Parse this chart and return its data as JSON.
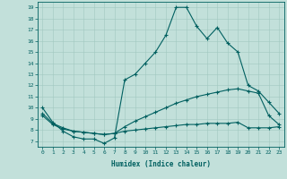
{
  "xlabel": "Humidex (Indice chaleur)",
  "background_color": "#c2e0da",
  "line_color": "#006060",
  "grid_color": "#a0c8c0",
  "xlim": [
    -0.5,
    23.5
  ],
  "ylim": [
    6.5,
    19.5
  ],
  "xticks": [
    0,
    1,
    2,
    3,
    4,
    5,
    6,
    7,
    8,
    9,
    10,
    11,
    12,
    13,
    14,
    15,
    16,
    17,
    18,
    19,
    20,
    21,
    22,
    23
  ],
  "yticks": [
    7,
    8,
    9,
    10,
    11,
    12,
    13,
    14,
    15,
    16,
    17,
    18,
    19
  ],
  "line1_x": [
    0,
    1,
    2,
    3,
    4,
    5,
    6,
    7,
    8,
    9,
    10,
    11,
    12,
    13,
    14,
    15,
    16,
    17,
    18,
    19,
    20,
    21,
    22,
    23
  ],
  "line1_y": [
    10.0,
    8.7,
    7.9,
    7.4,
    7.2,
    7.2,
    6.8,
    7.3,
    12.5,
    13.0,
    14.0,
    15.0,
    16.5,
    19.0,
    19.0,
    17.3,
    16.2,
    17.2,
    15.8,
    15.0,
    12.0,
    11.5,
    10.5,
    9.5
  ],
  "line2_x": [
    0,
    1,
    2,
    3,
    4,
    5,
    6,
    7,
    8,
    9,
    10,
    11,
    12,
    13,
    14,
    15,
    16,
    17,
    18,
    19,
    20,
    21,
    22,
    23
  ],
  "line2_y": [
    9.5,
    8.6,
    8.2,
    7.9,
    7.8,
    7.7,
    7.6,
    7.7,
    8.3,
    8.8,
    9.2,
    9.6,
    10.0,
    10.4,
    10.7,
    11.0,
    11.2,
    11.4,
    11.6,
    11.7,
    11.5,
    11.3,
    9.3,
    8.5
  ],
  "line3_x": [
    0,
    1,
    2,
    3,
    4,
    5,
    6,
    7,
    8,
    9,
    10,
    11,
    12,
    13,
    14,
    15,
    16,
    17,
    18,
    19,
    20,
    21,
    22,
    23
  ],
  "line3_y": [
    9.3,
    8.5,
    8.1,
    7.9,
    7.8,
    7.7,
    7.6,
    7.7,
    7.9,
    8.0,
    8.1,
    8.2,
    8.3,
    8.4,
    8.5,
    8.5,
    8.6,
    8.6,
    8.6,
    8.7,
    8.2,
    8.2,
    8.2,
    8.3
  ]
}
